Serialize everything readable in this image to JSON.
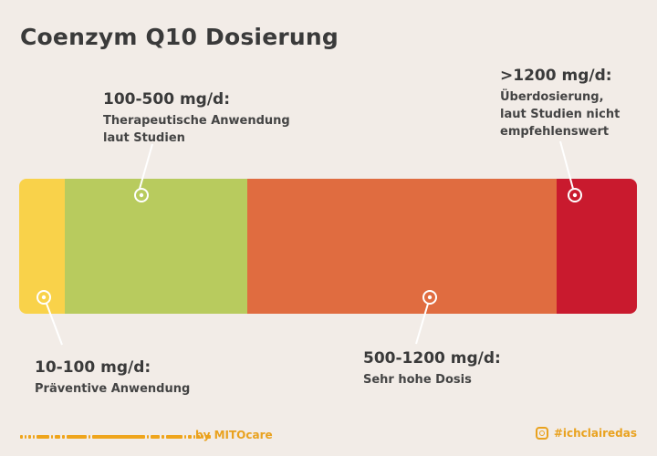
{
  "title": "Coenzym Q10 Dosierung",
  "scale": {
    "segments": [
      {
        "name": "yellow",
        "color": "#f9d24a"
      },
      {
        "name": "green",
        "color": "#b8cb5e"
      },
      {
        "name": "orange",
        "color": "#e06c40"
      },
      {
        "name": "red",
        "color": "#c91a2e"
      }
    ]
  },
  "labels": {
    "range_10_100": {
      "head": "10-100 mg/d:",
      "desc": "Präventive Anwendung"
    },
    "range_100_500": {
      "head": "100-500 mg/d:",
      "desc_line1": "Therapeutische Anwendung",
      "desc_line2": "laut Studien"
    },
    "range_500_1200": {
      "head": "500-1200 mg/d:",
      "desc": "Sehr hohe Dosis"
    },
    "range_over_1200": {
      "head": ">1200 mg/d:",
      "desc_line1": "Überdosierung,",
      "desc_line2": "laut Studien nicht",
      "desc_line3": "empfehlenswert"
    }
  },
  "footer": {
    "brand": "by MITOcare",
    "handle": "#ichclairedas",
    "accent_color": "#efa51c",
    "icon": "instagram-icon"
  }
}
